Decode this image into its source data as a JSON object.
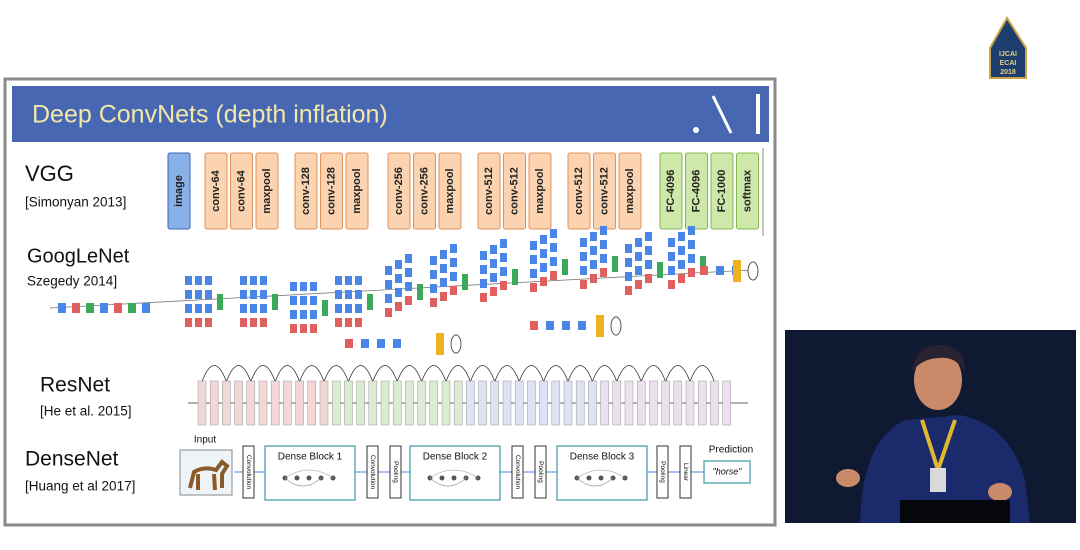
{
  "logo": {
    "lines": [
      "IJCAI",
      "ECAI",
      "2018"
    ]
  },
  "slide": {
    "title": "Deep ConvNets (depth inflation)",
    "rows": [
      {
        "name": "VGG",
        "citation": "[Simonyan 2013]"
      },
      {
        "name": "GoogLeNet",
        "citation": "Szegedy 2014]"
      },
      {
        "name": "ResNet",
        "citation": "[He et al. 2015]"
      },
      {
        "name": "DenseNet",
        "citation": "[Huang et al 2017]"
      }
    ],
    "vgg_groups": [
      [
        "image"
      ],
      [
        "conv-64",
        "conv-64",
        "maxpool"
      ],
      [
        "conv-128",
        "conv-128",
        "maxpool"
      ],
      [
        "conv-256",
        "conv-256",
        "maxpool"
      ],
      [
        "conv-512",
        "conv-512",
        "maxpool"
      ],
      [
        "conv-512",
        "conv-512",
        "maxpool"
      ],
      [
        "FC-4096",
        "FC-4096",
        "FC-1000",
        "softmax"
      ]
    ],
    "densenet": {
      "input": "Input",
      "sequence": [
        "Convolution",
        "Dense Block 1",
        "Convolution",
        "Pooling",
        "Dense Block 2",
        "Convolution",
        "Pooling",
        "Dense Block 3",
        "Pooling",
        "Linear"
      ],
      "prediction": "Prediction",
      "output": "\"horse\""
    }
  }
}
